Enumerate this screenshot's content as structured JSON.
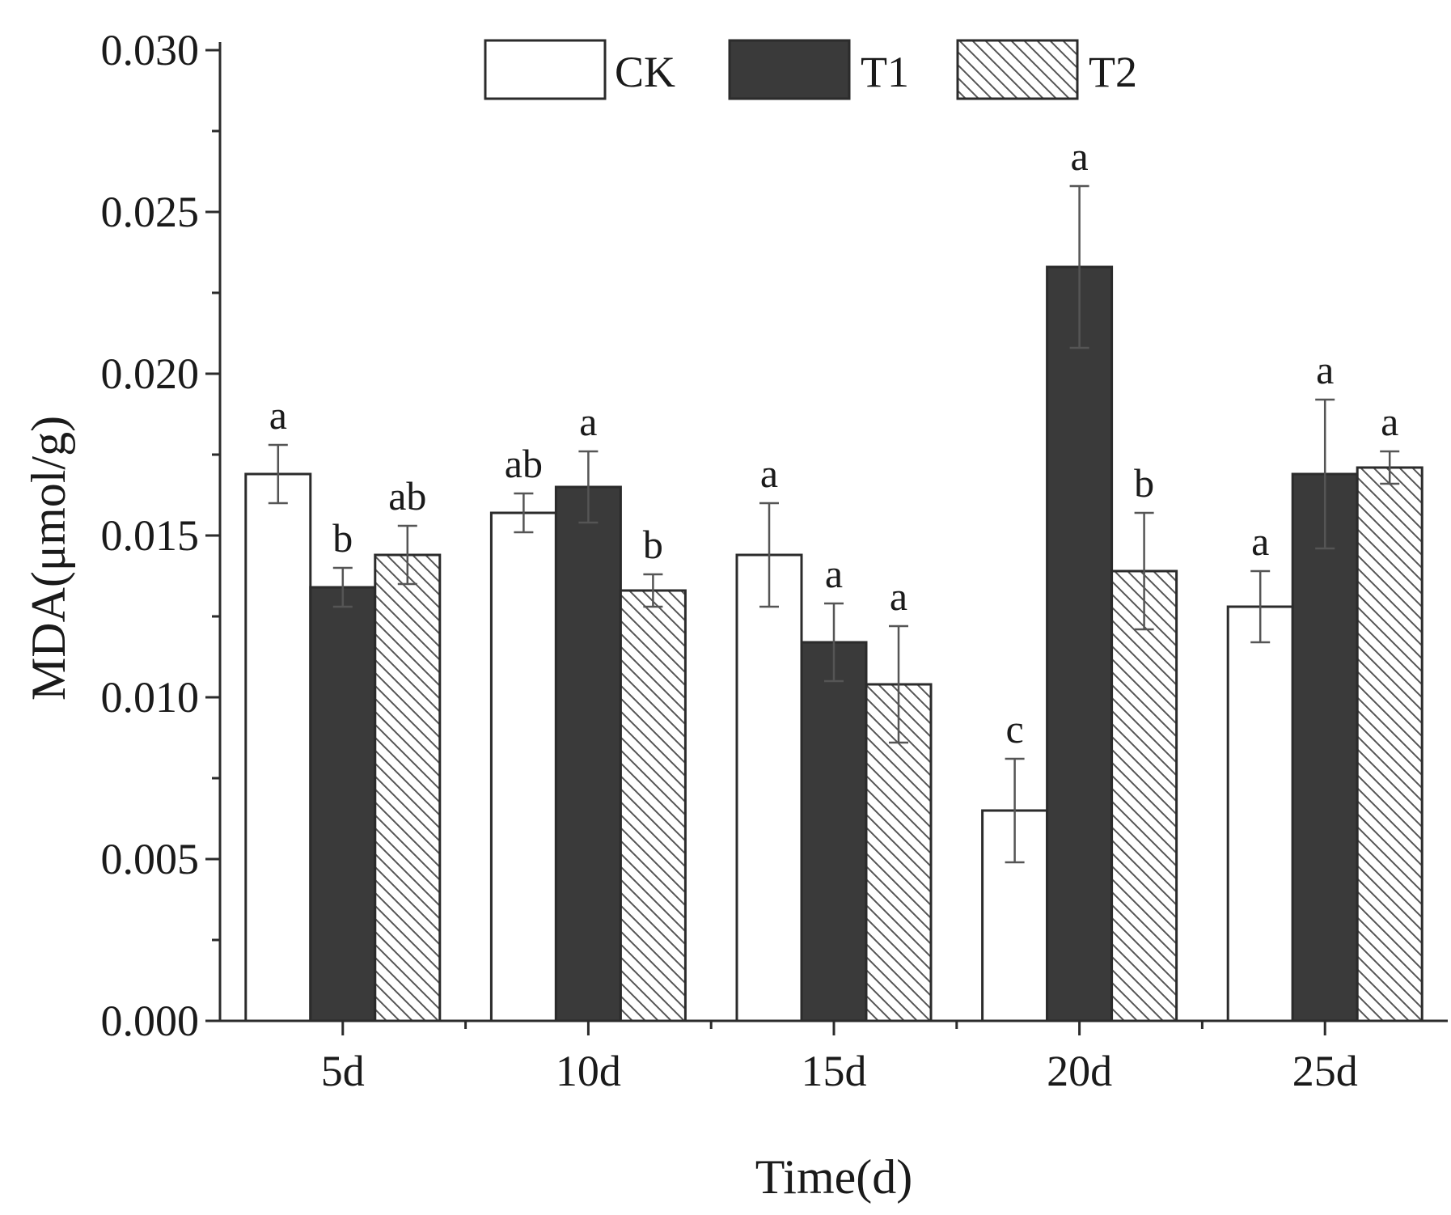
{
  "chart_data": {
    "type": "bar",
    "title": "",
    "xlabel": "Time(d)",
    "ylabel": "MDA(μmol/g)",
    "ylim": [
      0,
      0.03
    ],
    "yticks": [
      "0.000",
      "0.005",
      "0.010",
      "0.015",
      "0.020",
      "0.025",
      "0.030"
    ],
    "ytick_values": [
      0,
      0.005,
      0.01,
      0.015,
      0.02,
      0.025,
      0.03
    ],
    "categories": [
      "5d",
      "10d",
      "15d",
      "20d",
      "25d"
    ],
    "legend_position": "top-center",
    "series": [
      {
        "name": "CK",
        "fill": "white",
        "values": [
          0.0169,
          0.0157,
          0.0144,
          0.0065,
          0.0128
        ],
        "errors": [
          0.0009,
          0.0006,
          0.0016,
          0.0016,
          0.0011
        ],
        "letters": [
          "a",
          "ab",
          "a",
          "c",
          "a"
        ]
      },
      {
        "name": "T1",
        "fill": "dark",
        "values": [
          0.0134,
          0.0165,
          0.0117,
          0.0233,
          0.0169
        ],
        "errors": [
          0.0006,
          0.0011,
          0.0012,
          0.0025,
          0.0023
        ],
        "letters": [
          "b",
          "a",
          "a",
          "a",
          "a"
        ]
      },
      {
        "name": "T2",
        "fill": "hatch",
        "values": [
          0.0144,
          0.0133,
          0.0104,
          0.0139,
          0.0171
        ],
        "errors": [
          0.0009,
          0.0005,
          0.0018,
          0.0018,
          0.0005
        ],
        "letters": [
          "ab",
          "b",
          "a",
          "b",
          "a"
        ]
      }
    ]
  },
  "colors": {
    "axis": "#2b2b2b",
    "bar_outline": "#2b2b2b",
    "dark_fill": "#3a3a3a",
    "white_fill": "#ffffff",
    "hatch_line": "#555555",
    "error_bar": "#555555"
  }
}
